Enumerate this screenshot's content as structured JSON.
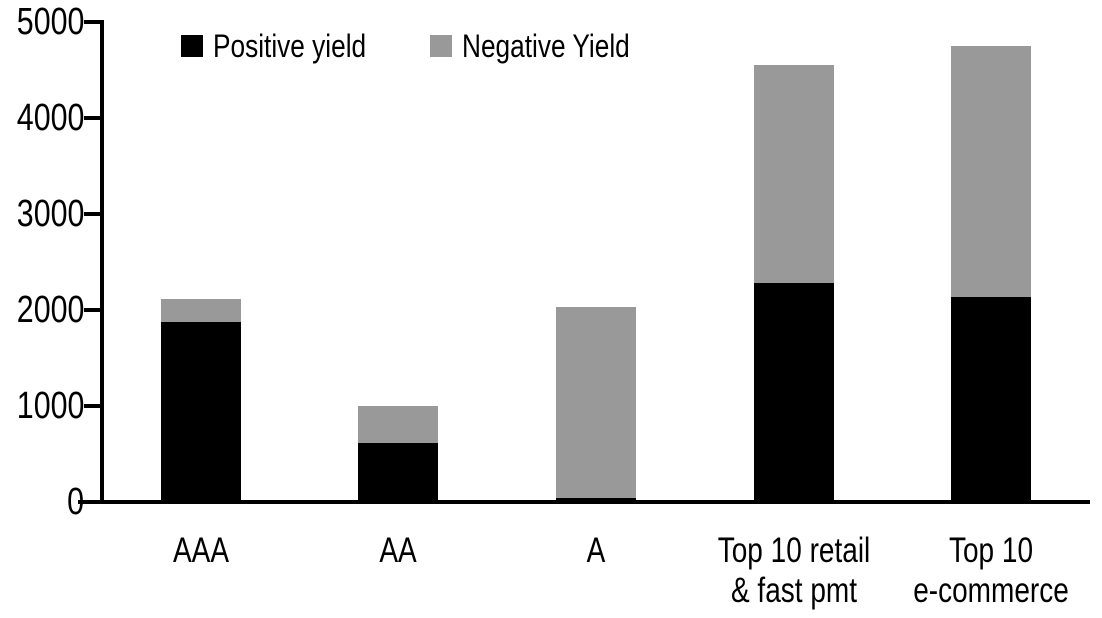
{
  "chart_data": {
    "type": "bar",
    "stacked": true,
    "title": "",
    "xlabel": "",
    "ylabel": "",
    "categories": [
      "AAA",
      "AA",
      "A",
      "Top 10 retail\n& fast pmt",
      "Top 10\ne-commerce"
    ],
    "series": [
      {
        "name": "Positive yield",
        "color": "#000000",
        "values": [
          1890,
          620,
          50,
          2290,
          2150
        ]
      },
      {
        "name": "Negative Yield",
        "color": "#999999",
        "values": [
          230,
          390,
          1990,
          2270,
          2610
        ]
      }
    ],
    "totals": [
      2120,
      1010,
      2040,
      4560,
      4760
    ],
    "ylim": [
      0,
      5000
    ],
    "yticks": [
      0,
      1000,
      2000,
      3000,
      4000,
      5000
    ],
    "legend_position": "top",
    "grid": false,
    "axis_color": "#000000",
    "background_color": "#ffffff"
  }
}
